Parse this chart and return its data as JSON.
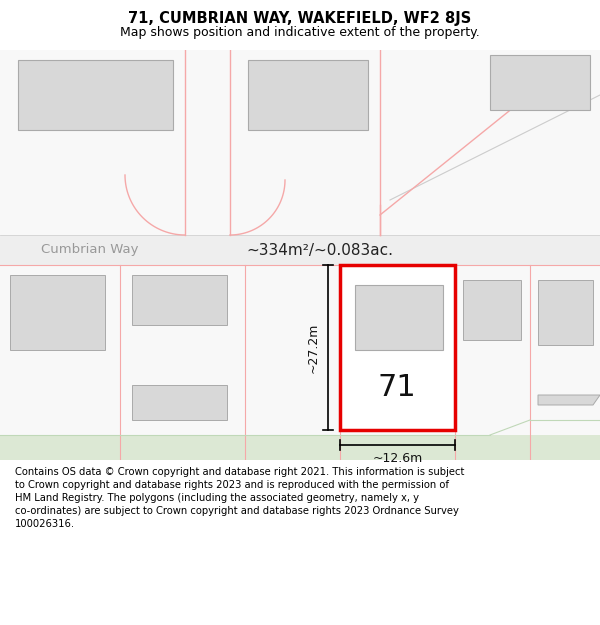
{
  "title": "71, CUMBRIAN WAY, WAKEFIELD, WF2 8JS",
  "subtitle": "Map shows position and indicative extent of the property.",
  "area_text": "~334m²/~0.083ac.",
  "street_name": "Cumbrian Way",
  "plot_number": "71",
  "dim_width": "~12.6m",
  "dim_height": "~27.2m",
  "footer_text": "Contains OS data © Crown copyright and database right 2021. This information is subject to Crown copyright and database rights 2023 and is reproduced with the permission of HM Land Registry. The polygons (including the associated geometry, namely x, y co-ordinates) are subject to Crown copyright and database rights 2023 Ordnance Survey 100026316.",
  "bg_color": "#f5f5f5",
  "map_upper_bg": "#f8f8f8",
  "map_lower_bg": "#f0f5ee",
  "road_color": "#e5e5e5",
  "plot_red": "#e60000",
  "plot_pink": "#f5b8b8",
  "bldg_fill": "#d8d8d8",
  "bldg_edge": "#aaaaaa",
  "title_fontsize": 10.5,
  "subtitle_fontsize": 9,
  "footer_fontsize": 7.2
}
